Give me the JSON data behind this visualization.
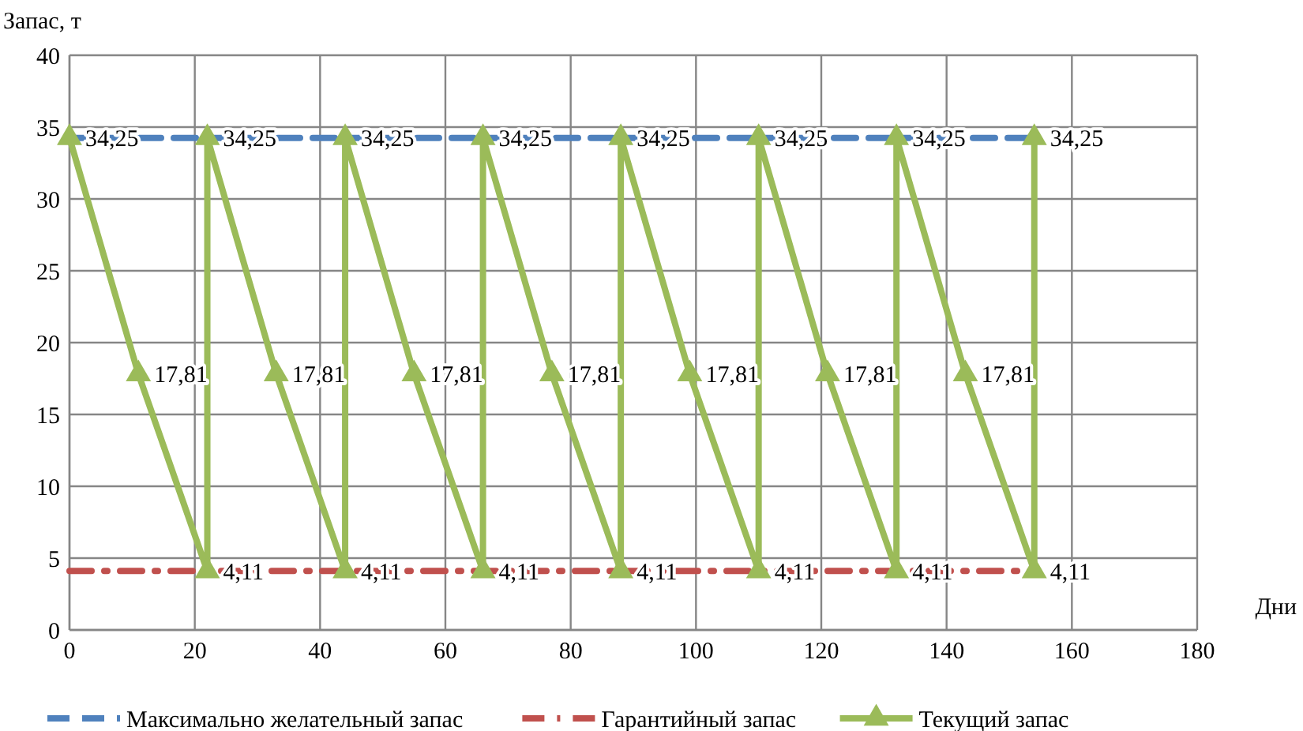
{
  "chart_data": {
    "type": "line",
    "xlabel": "Дни",
    "ylabel": "Запас, т",
    "xlim": [
      0,
      180
    ],
    "xticks": [
      0,
      20,
      40,
      60,
      80,
      100,
      120,
      140,
      160,
      180
    ],
    "ylim": [
      0,
      40
    ],
    "yticks": [
      0,
      5,
      10,
      15,
      20,
      25,
      30,
      35,
      40
    ],
    "grid": true,
    "legend": "bottom",
    "series": [
      {
        "name": "Максимально желательный запас",
        "color": "#4f81bd",
        "line_style": "dashed",
        "marker": "none",
        "x": [
          0,
          22,
          44,
          66,
          88,
          110,
          132,
          154
        ],
        "values": [
          34.25,
          34.25,
          34.25,
          34.25,
          34.25,
          34.25,
          34.25,
          34.25
        ]
      },
      {
        "name": "Гарантийный запас",
        "color": "#c0504d",
        "line_style": "dashdot",
        "marker": "none",
        "x": [
          0,
          22,
          44,
          66,
          88,
          110,
          132,
          154
        ],
        "values": [
          4.11,
          4.11,
          4.11,
          4.11,
          4.11,
          4.11,
          4.11,
          4.11
        ]
      },
      {
        "name": "Текущий запас",
        "color": "#9bbb59",
        "line_style": "solid",
        "marker": "triangle",
        "x": [
          0,
          11,
          22,
          22,
          33,
          44,
          44,
          55,
          66,
          66,
          77,
          88,
          88,
          99,
          110,
          110,
          121,
          132,
          132,
          143,
          154,
          154
        ],
        "values": [
          34.25,
          17.81,
          4.11,
          34.25,
          17.81,
          4.11,
          34.25,
          17.81,
          4.11,
          34.25,
          17.81,
          4.11,
          34.25,
          17.81,
          4.11,
          34.25,
          17.81,
          4.11,
          34.25,
          17.81,
          4.11,
          34.25
        ],
        "value_labels": [
          "34,25",
          "17,81",
          "4,11",
          "34,25",
          "17,81",
          "4,11",
          "34,25",
          "17,81",
          "4,11",
          "34,25",
          "17,81",
          "4,11",
          "34,25",
          "17,81",
          "4,11",
          "34,25",
          "17,81",
          "4,11",
          "34,25",
          "17,81",
          "4,11",
          "34,25"
        ]
      }
    ]
  }
}
